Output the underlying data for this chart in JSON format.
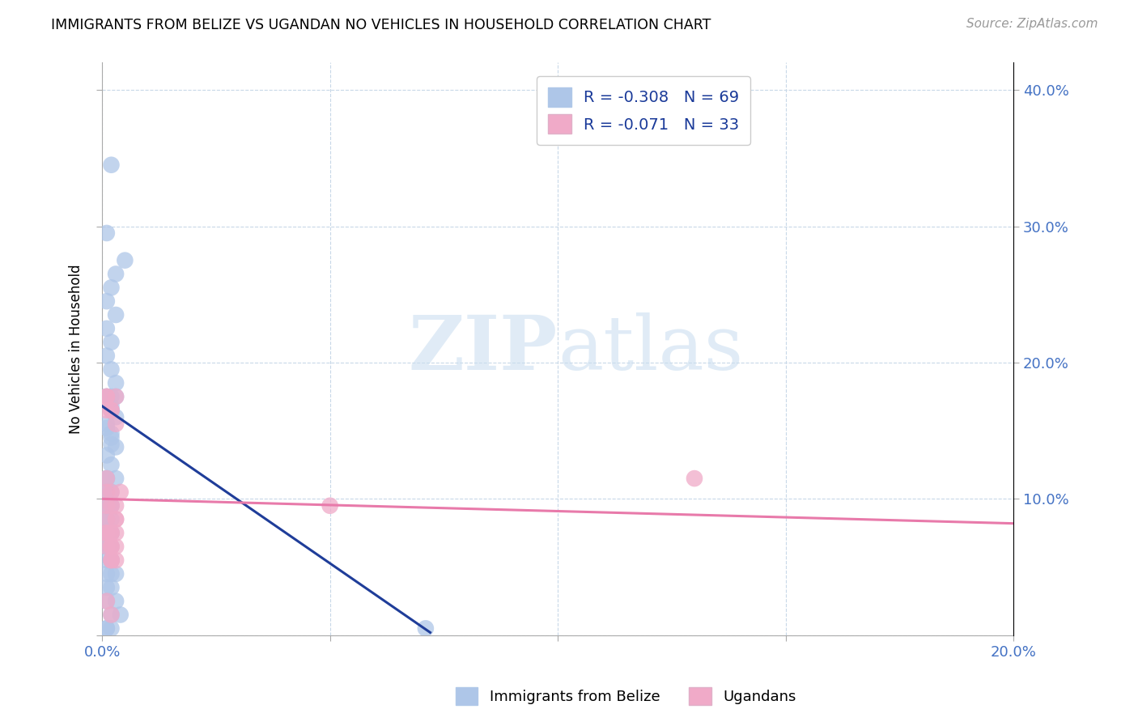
{
  "title": "IMMIGRANTS FROM BELIZE VS UGANDAN NO VEHICLES IN HOUSEHOLD CORRELATION CHART",
  "source": "Source: ZipAtlas.com",
  "ylabel": "No Vehicles in Household",
  "xlim": [
    0.0,
    0.2
  ],
  "ylim": [
    0.0,
    0.42
  ],
  "xticks": [
    0.0,
    0.05,
    0.1,
    0.15,
    0.2
  ],
  "xtick_labels": [
    "0.0%",
    "",
    "",
    "",
    "20.0%"
  ],
  "yticks_left": [
    0.0,
    0.1,
    0.2,
    0.3,
    0.4
  ],
  "yticks_right": [
    0.1,
    0.2,
    0.3,
    0.4
  ],
  "ytick_labels_right": [
    "10.0%",
    "20.0%",
    "30.0%",
    "40.0%"
  ],
  "legend_blue_label": "R = -0.308   N = 69",
  "legend_pink_label": "R = -0.071   N = 33",
  "belize_color": "#aec6e8",
  "ugandan_color": "#f0aac8",
  "belize_line_color": "#1f3d99",
  "ugandan_line_color": "#e87aaa",
  "watermark_zip": "ZIP",
  "watermark_atlas": "atlas",
  "belize_scatter_x": [
    0.002,
    0.005,
    0.001,
    0.003,
    0.002,
    0.001,
    0.003,
    0.001,
    0.002,
    0.001,
    0.002,
    0.003,
    0.001,
    0.002,
    0.003,
    0.001,
    0.002,
    0.003,
    0.001,
    0.002,
    0.001,
    0.002,
    0.003,
    0.002,
    0.001,
    0.002,
    0.003,
    0.001,
    0.002,
    0.001,
    0.002,
    0.001,
    0.002,
    0.001,
    0.002,
    0.001,
    0.002,
    0.001,
    0.001,
    0.002,
    0.001,
    0.002,
    0.001,
    0.002,
    0.001,
    0.001,
    0.002,
    0.001,
    0.002,
    0.001,
    0.002,
    0.001,
    0.001,
    0.002,
    0.001,
    0.002,
    0.003,
    0.001,
    0.002,
    0.001,
    0.002,
    0.003,
    0.001,
    0.002,
    0.004,
    0.001,
    0.002,
    0.071,
    0.001
  ],
  "belize_scatter_y": [
    0.345,
    0.275,
    0.295,
    0.265,
    0.255,
    0.245,
    0.235,
    0.225,
    0.215,
    0.205,
    0.195,
    0.185,
    0.175,
    0.168,
    0.16,
    0.152,
    0.145,
    0.138,
    0.175,
    0.165,
    0.155,
    0.148,
    0.175,
    0.14,
    0.132,
    0.125,
    0.115,
    0.175,
    0.165,
    0.115,
    0.105,
    0.095,
    0.175,
    0.105,
    0.095,
    0.085,
    0.075,
    0.095,
    0.085,
    0.075,
    0.065,
    0.085,
    0.075,
    0.065,
    0.115,
    0.105,
    0.095,
    0.085,
    0.075,
    0.065,
    0.055,
    0.075,
    0.065,
    0.055,
    0.045,
    0.055,
    0.045,
    0.055,
    0.045,
    0.035,
    0.035,
    0.025,
    0.025,
    0.015,
    0.015,
    0.005,
    0.005,
    0.005,
    0.005
  ],
  "ugandan_scatter_x": [
    0.001,
    0.002,
    0.003,
    0.001,
    0.002,
    0.003,
    0.001,
    0.002,
    0.001,
    0.002,
    0.003,
    0.001,
    0.002,
    0.003,
    0.004,
    0.001,
    0.002,
    0.003,
    0.002,
    0.001,
    0.002,
    0.003,
    0.001,
    0.002,
    0.001,
    0.002,
    0.003,
    0.001,
    0.002,
    0.003,
    0.13,
    0.05,
    0.001
  ],
  "ugandan_scatter_y": [
    0.175,
    0.165,
    0.155,
    0.105,
    0.095,
    0.085,
    0.175,
    0.165,
    0.115,
    0.105,
    0.085,
    0.095,
    0.075,
    0.065,
    0.105,
    0.075,
    0.065,
    0.055,
    0.055,
    0.085,
    0.075,
    0.175,
    0.065,
    0.055,
    0.075,
    0.065,
    0.095,
    0.025,
    0.015,
    0.075,
    0.115,
    0.095,
    0.165
  ],
  "belize_line_x": [
    0.0,
    0.072
  ],
  "belize_line_y": [
    0.168,
    0.002
  ],
  "ugandan_line_x": [
    0.0,
    0.2
  ],
  "ugandan_line_y": [
    0.1,
    0.082
  ],
  "bottom_legend_labels": [
    "Immigrants from Belize",
    "Ugandans"
  ]
}
